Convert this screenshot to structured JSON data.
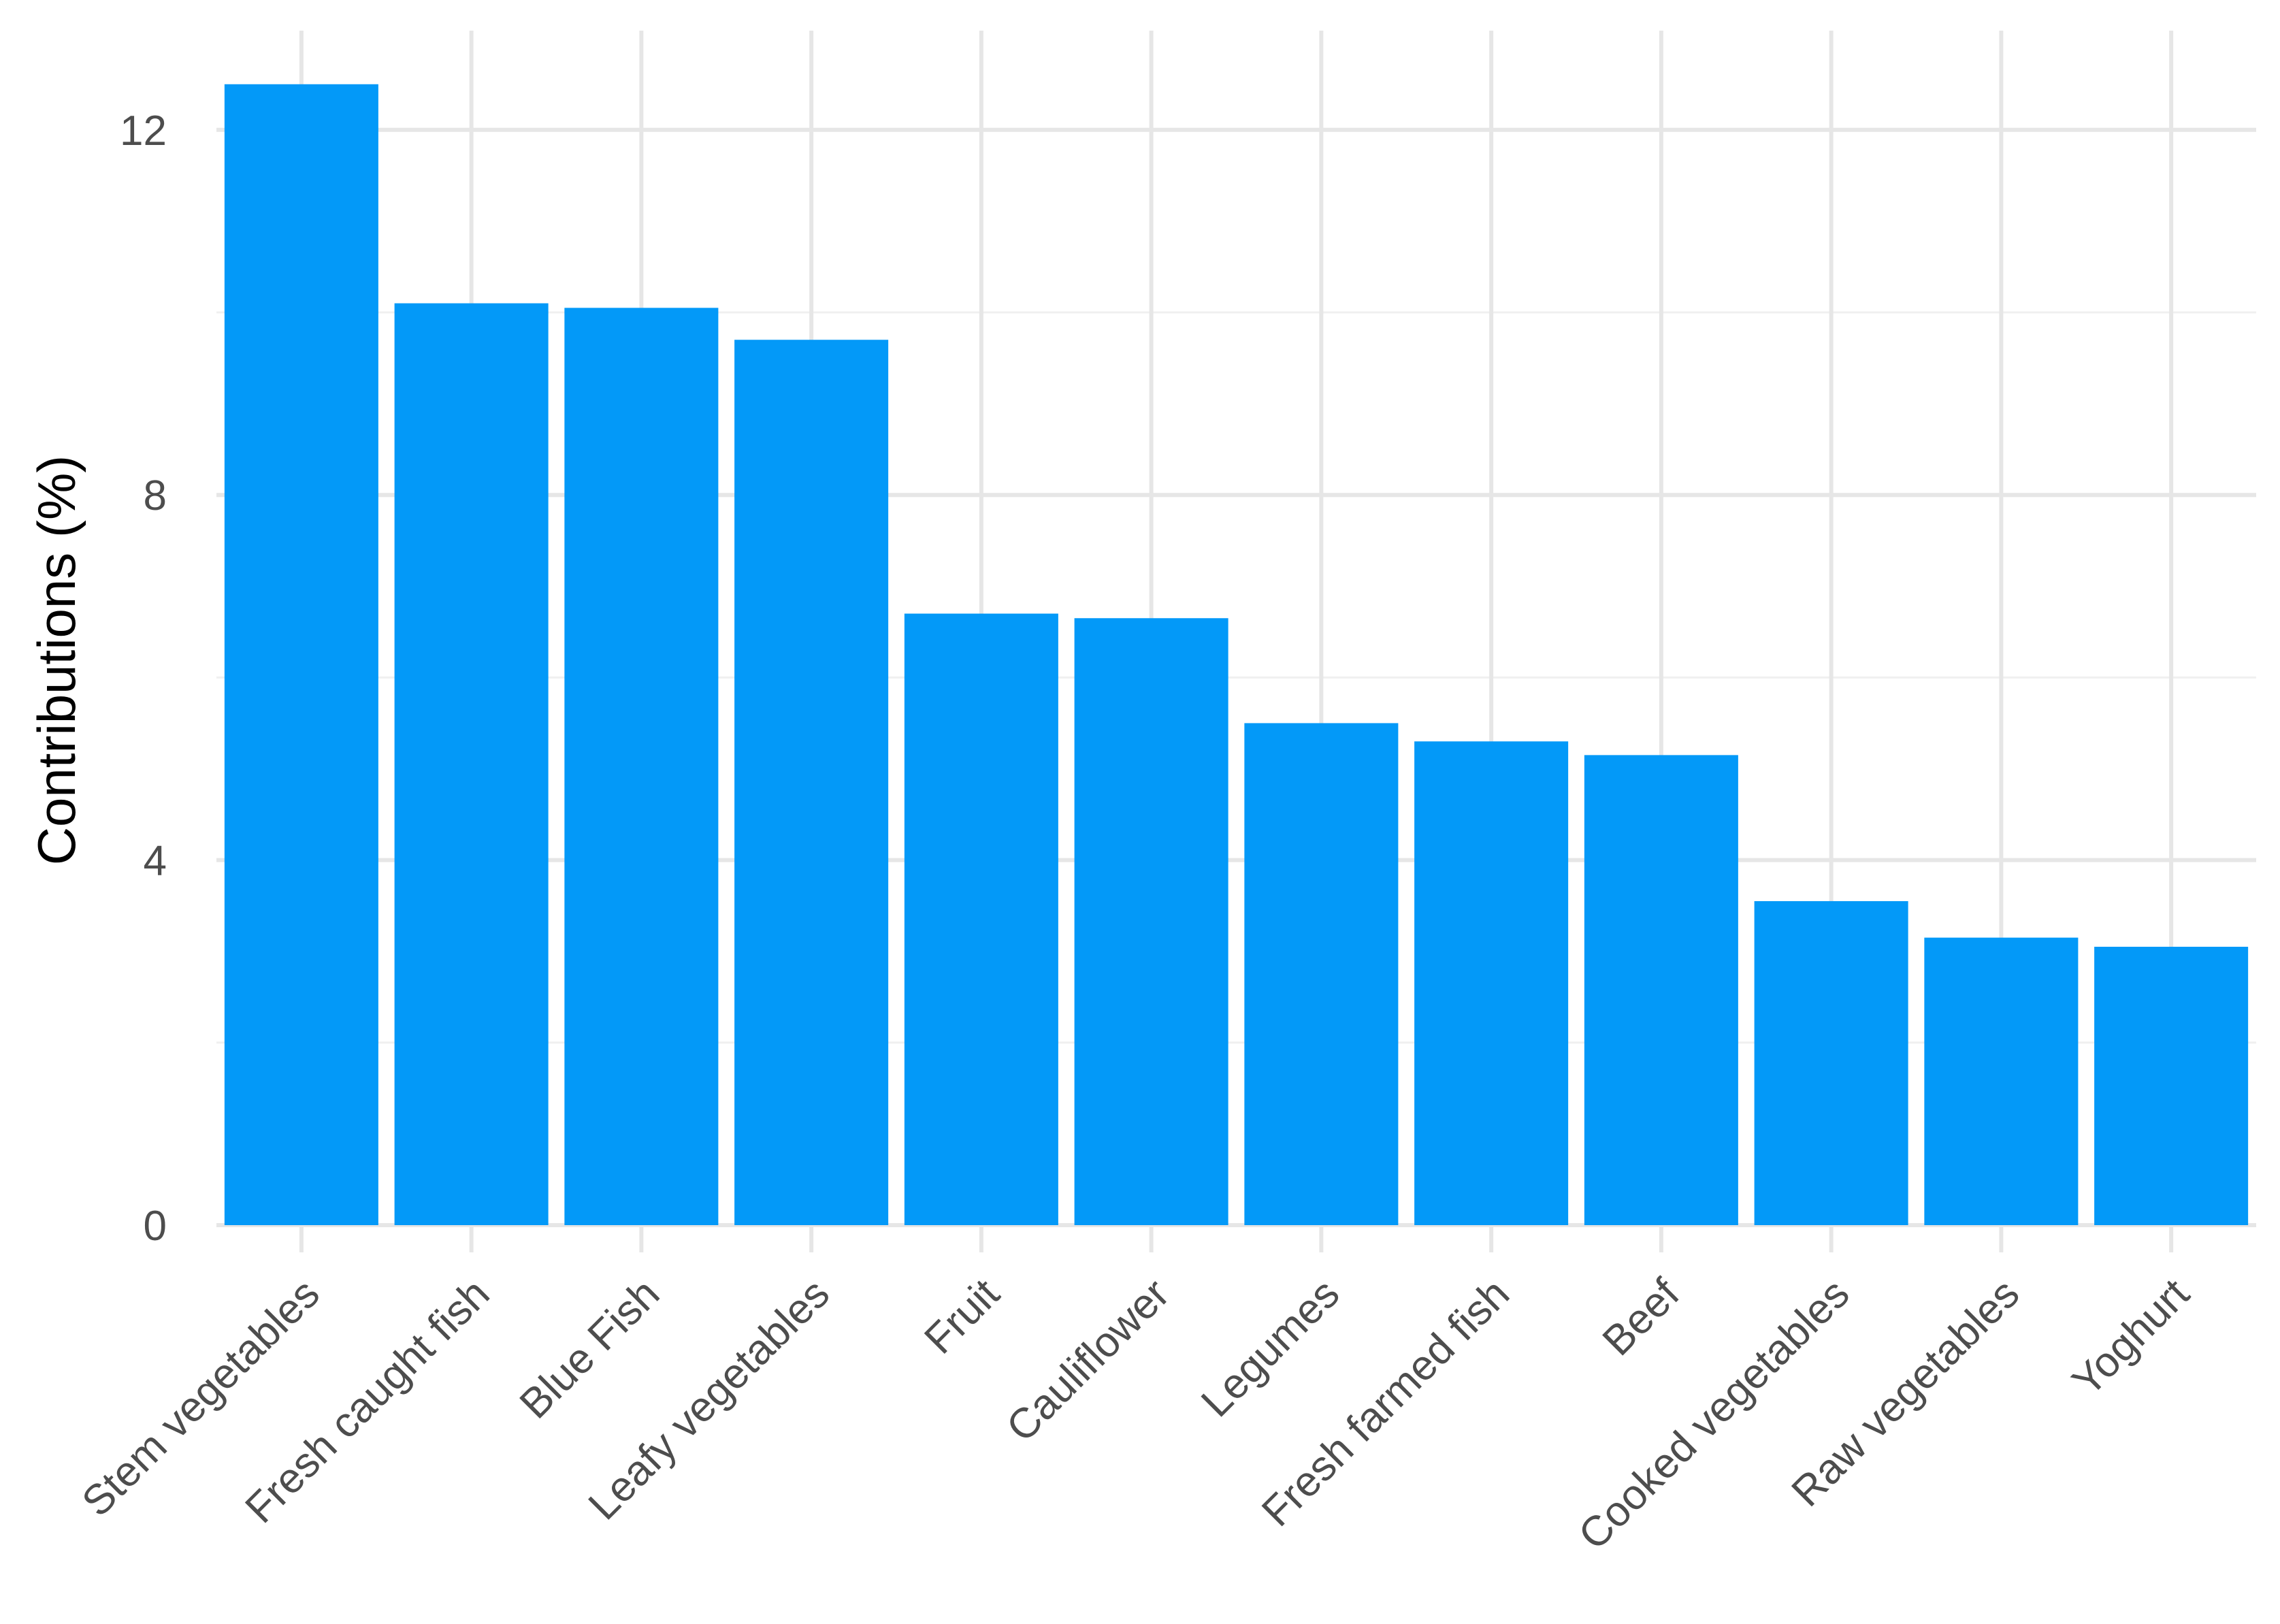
{
  "chart_data": {
    "type": "bar",
    "title": "",
    "xlabel": "",
    "ylabel": "Contributions (%)",
    "ylim": [
      0,
      13
    ],
    "yticks": [
      0,
      4,
      8,
      12
    ],
    "grid": true,
    "bar_color": "#0399F8",
    "categories": [
      "Stem vegetables",
      "Fresh caught fish",
      "Blue Fish",
      "Leafy vegetables",
      "Fruit",
      "Cauliflower",
      "Legumes",
      "Fresh farmed fish",
      "Beef",
      "Cooked vegetables",
      "Raw vegetables",
      "Yoghurt"
    ],
    "values": [
      12.5,
      10.1,
      10.05,
      9.7,
      6.7,
      6.65,
      5.5,
      5.3,
      5.15,
      3.55,
      3.15,
      3.05
    ]
  }
}
